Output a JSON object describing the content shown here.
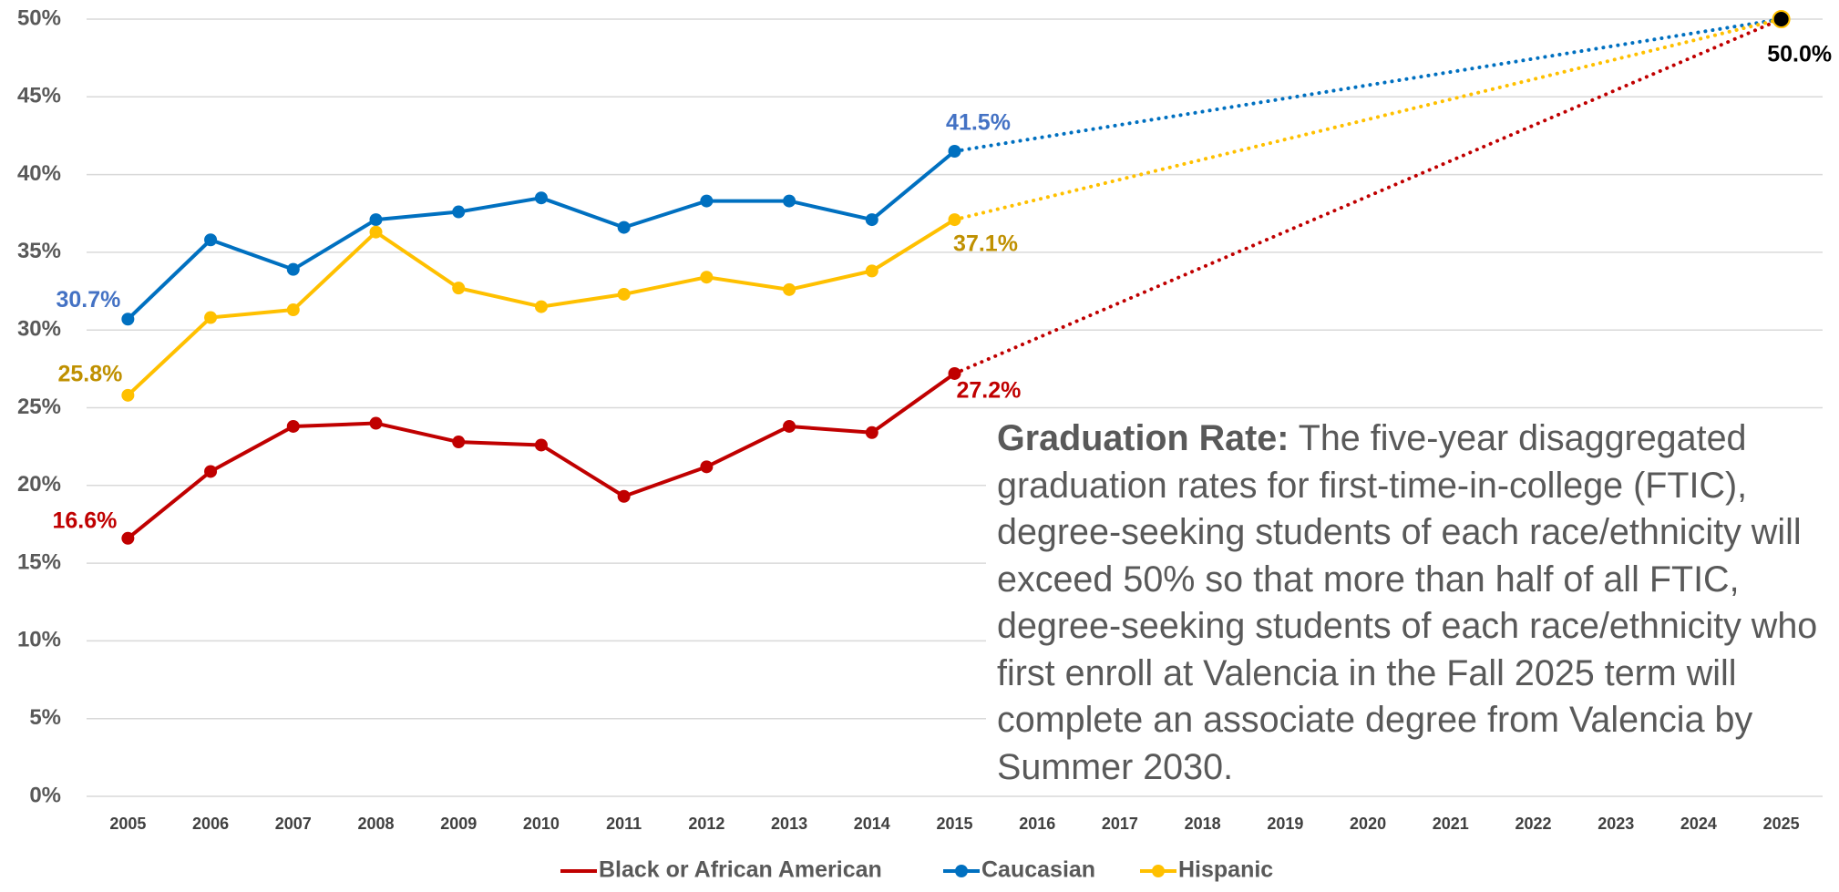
{
  "chart_data": {
    "type": "line",
    "x": [
      2005,
      2006,
      2007,
      2008,
      2009,
      2010,
      2011,
      2012,
      2013,
      2014,
      2015
    ],
    "series": [
      {
        "name": "Black or African American",
        "color": "#c00000",
        "label_color": "#c00000",
        "values": [
          16.6,
          20.9,
          23.8,
          24.0,
          22.8,
          22.6,
          19.3,
          21.2,
          23.8,
          23.4,
          27.2
        ],
        "value_labels": [
          "16.6%",
          null,
          null,
          null,
          null,
          null,
          null,
          null,
          null,
          null,
          "27.2%"
        ]
      },
      {
        "name": "Caucasian",
        "color": "#0070c0",
        "label_color": "#4472c4",
        "values": [
          30.7,
          35.8,
          33.9,
          37.1,
          37.6,
          38.5,
          36.6,
          38.3,
          38.3,
          37.1,
          41.5
        ],
        "value_labels": [
          "30.7%",
          null,
          null,
          null,
          null,
          null,
          null,
          null,
          null,
          null,
          "41.5%"
        ]
      },
      {
        "name": "Hispanic",
        "color": "#ffc000",
        "label_color": "#bf9000",
        "values": [
          25.8,
          30.8,
          31.3,
          36.3,
          32.7,
          31.5,
          32.3,
          33.4,
          32.6,
          33.8,
          37.1
        ],
        "value_labels": [
          "25.8%",
          null,
          null,
          null,
          null,
          null,
          null,
          null,
          null,
          null,
          "37.1%"
        ]
      }
    ],
    "target": {
      "x": 2025,
      "value": 50,
      "label": "50.0%"
    },
    "xlim": [
      2004.5,
      2025.5
    ],
    "xticks": [
      2005,
      2006,
      2007,
      2008,
      2009,
      2010,
      2011,
      2012,
      2013,
      2014,
      2015,
      2016,
      2017,
      2018,
      2019,
      2020,
      2021,
      2022,
      2023,
      2024,
      2025
    ],
    "ylim": [
      0,
      50
    ],
    "yticks": [
      {
        "value": 0,
        "label": "0%"
      },
      {
        "value": 5,
        "label": "5%"
      },
      {
        "value": 10,
        "label": "10%"
      },
      {
        "value": 15,
        "label": "15%"
      },
      {
        "value": 20,
        "label": "20%"
      },
      {
        "value": 25,
        "label": "25%"
      },
      {
        "value": 30,
        "label": "30%"
      },
      {
        "value": 35,
        "label": "35%"
      },
      {
        "value": 40,
        "label": "40%"
      },
      {
        "value": 45,
        "label": "45%"
      },
      {
        "value": 50,
        "label": "50%"
      }
    ],
    "grid": true,
    "legend": "bottom",
    "annotation": {
      "heading": "Graduation Rate:",
      "text": "The five-year disaggregated graduation rates for first-time-in-college (FTIC), degree-seeking students of each race/ethnicity will exceed 50% so that more than half of all FTIC, degree-seeking students of each race/ethnicity who first enroll at Valencia in the Fall 2025 term will complete an associate degree from Valencia by Summer 2030."
    }
  }
}
